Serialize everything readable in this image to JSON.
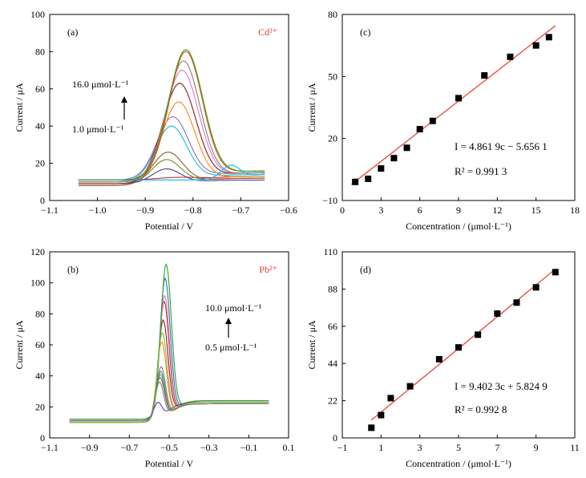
{
  "chart_data": [
    {
      "panel": "(a)",
      "type": "line",
      "ion_label": "Cd²⁺",
      "xlabel": "Potential / V",
      "ylabel": "Current / μA",
      "xlim": [
        -1.1,
        -0.6
      ],
      "ylim": [
        0,
        100
      ],
      "xticks": [
        "-1.1",
        "-1.0",
        "-0.9",
        "-0.8",
        "-0.7",
        "-0.6"
      ],
      "yticks": [
        "0",
        "20",
        "40",
        "60",
        "80",
        "100"
      ],
      "annotations": {
        "top": "16.0 μmol·L⁻¹",
        "bottom": "1.0 μmol·L⁻¹"
      },
      "x_range": [
        -1.04,
        -0.65
      ],
      "colors": [
        "#d62728",
        "#4b3f9e",
        "#6b8e23",
        "#8b5a2b",
        "#17becf",
        "#9467bd",
        "#ff7f0e",
        "#8b1a1a",
        "#e377c2",
        "#808080",
        "#ff4500",
        "#00bfff",
        "#2ca02c"
      ],
      "series": [
        {
          "peak": 12.5,
          "center": -0.82,
          "width": 0.05,
          "base_left": 11,
          "base_right": 13
        },
        {
          "peak": 17,
          "center": -0.855,
          "width": 0.03,
          "base_left": 9,
          "base_right": 11
        },
        {
          "peak": 22,
          "center": -0.855,
          "width": 0.03,
          "base_left": 9,
          "base_right": 12
        },
        {
          "peak": 26,
          "center": -0.852,
          "width": 0.032,
          "base_left": 8,
          "base_right": 12
        },
        {
          "peak": 40,
          "center": -0.845,
          "width": 0.033,
          "base_left": 10,
          "base_right": 14
        },
        {
          "peak": 45,
          "center": -0.842,
          "width": 0.033,
          "base_left": 11,
          "base_right": 15
        },
        {
          "peak": 53,
          "center": -0.83,
          "width": 0.034,
          "base_left": 10,
          "base_right": 13
        },
        {
          "peak": 63,
          "center": -0.828,
          "width": 0.035,
          "base_left": 9,
          "base_right": 15
        },
        {
          "peak": 70,
          "center": -0.823,
          "width": 0.035,
          "base_left": 10,
          "base_right": 15
        },
        {
          "peak": 75,
          "center": -0.82,
          "width": 0.035,
          "base_left": 10,
          "base_right": 15
        },
        {
          "peak": 80,
          "center": -0.815,
          "width": 0.035,
          "base_left": 11,
          "base_right": 16
        },
        {
          "peak": 19,
          "center": -0.72,
          "width": 0.02,
          "base_left": 11,
          "base_right": 16
        },
        {
          "peak": 81,
          "center": -0.815,
          "width": 0.036,
          "base_left": 11,
          "base_right": 16
        }
      ]
    },
    {
      "panel": "(c)",
      "type": "scatter",
      "xlabel": "Concentration / (μmol·L⁻¹)",
      "ylabel": "Current / μA",
      "xlim": [
        0,
        18
      ],
      "ylim": [
        -10,
        80
      ],
      "xticks": [
        "0",
        "3",
        "6",
        "9",
        "12",
        "15",
        "18"
      ],
      "yticks": [
        "-10",
        "20",
        "50",
        "80"
      ],
      "equation": "I = 4.861 9c − 5.656 1",
      "r2": "R² = 0.991 3",
      "fit": {
        "slope": 4.8619,
        "intercept": -5.6561,
        "x_start": 0.7,
        "x_end": 16.5,
        "color": "#e8372b"
      },
      "x": [
        1,
        2,
        3,
        4,
        5,
        6,
        7,
        9,
        11,
        13,
        15,
        16
      ],
      "y": [
        -1,
        0.5,
        5.5,
        10.5,
        15.5,
        24.5,
        28.5,
        39.5,
        50.5,
        59.5,
        65,
        69
      ]
    },
    {
      "panel": "(b)",
      "type": "line",
      "ion_label": "Pb²⁺",
      "xlabel": "Potential / V",
      "ylabel": "Current / μA",
      "xlim": [
        -1.1,
        0.1
      ],
      "ylim": [
        0,
        120
      ],
      "xticks": [
        "-1.1",
        "-0.9",
        "-0.7",
        "-0.5",
        "-0.3",
        "-0.1",
        "0.1"
      ],
      "yticks": [
        "0",
        "20",
        "40",
        "60",
        "80",
        "100",
        "120"
      ],
      "annotations": {
        "top": "10.0 μmol·L⁻¹",
        "bottom": "0.5 μmol·L⁻¹"
      },
      "x_range": [
        -1.0,
        0.0
      ],
      "colors": [
        "#4b3f9e",
        "#8b5a2b",
        "#17becf",
        "#6b8e23",
        "#9467bd",
        "#ff7f0e",
        "#8b1a1a",
        "#d62728",
        "#e377c2",
        "#1f77b4",
        "#2ca02c",
        "#7fbf3f",
        "#808080"
      ],
      "series": [
        {
          "peak": 23,
          "center": -0.555,
          "width": 0.02,
          "base_left": 12,
          "base_right": 23
        },
        {
          "peak": 39,
          "center": -0.545,
          "width": 0.022,
          "base_left": 11,
          "base_right": 22
        },
        {
          "peak": 41,
          "center": -0.543,
          "width": 0.022,
          "base_left": 11,
          "base_right": 22
        },
        {
          "peak": 43,
          "center": -0.542,
          "width": 0.022,
          "base_left": 10,
          "base_right": 22
        },
        {
          "peak": 46,
          "center": -0.54,
          "width": 0.023,
          "base_left": 10,
          "base_right": 23
        },
        {
          "peak": 62,
          "center": -0.537,
          "width": 0.024,
          "base_left": 10,
          "base_right": 23
        },
        {
          "peak": 76,
          "center": -0.53,
          "width": 0.025,
          "base_left": 11,
          "base_right": 24
        },
        {
          "peak": 88,
          "center": -0.525,
          "width": 0.025,
          "base_left": 11,
          "base_right": 24
        },
        {
          "peak": 92,
          "center": -0.523,
          "width": 0.025,
          "base_left": 11,
          "base_right": 24
        },
        {
          "peak": 103,
          "center": -0.52,
          "width": 0.026,
          "base_left": 11,
          "base_right": 24
        },
        {
          "peak": 112,
          "center": -0.515,
          "width": 0.027,
          "base_left": 12,
          "base_right": 24
        },
        {
          "peak": 68,
          "center": -0.534,
          "width": 0.024,
          "base_left": 10,
          "base_right": 23
        },
        {
          "peak": 36,
          "center": -0.548,
          "width": 0.021,
          "base_left": 11,
          "base_right": 22
        }
      ]
    },
    {
      "panel": "(d)",
      "type": "scatter",
      "xlabel": "Concentration / (μmol·L⁻¹)",
      "ylabel": "Current / μA",
      "xlim": [
        -1,
        11
      ],
      "ylim": [
        0,
        110
      ],
      "xticks": [
        "-1",
        "1",
        "3",
        "5",
        "7",
        "9",
        "11"
      ],
      "yticks": [
        "0",
        "22",
        "44",
        "66",
        "88",
        "110"
      ],
      "equation": "I = 9.402 3c + 5.824 9",
      "r2": "R² = 0.992 8",
      "fit": {
        "slope": 9.4023,
        "intercept": 5.8249,
        "x_start": 0.5,
        "x_end": 10,
        "color": "#e8372b"
      },
      "x": [
        0.5,
        1,
        1.5,
        2.5,
        4,
        5,
        6,
        7,
        8,
        9,
        10
      ],
      "y": [
        6,
        13.5,
        23.5,
        30.5,
        46.5,
        53.5,
        61,
        73.5,
        80,
        89,
        98
      ]
    }
  ]
}
